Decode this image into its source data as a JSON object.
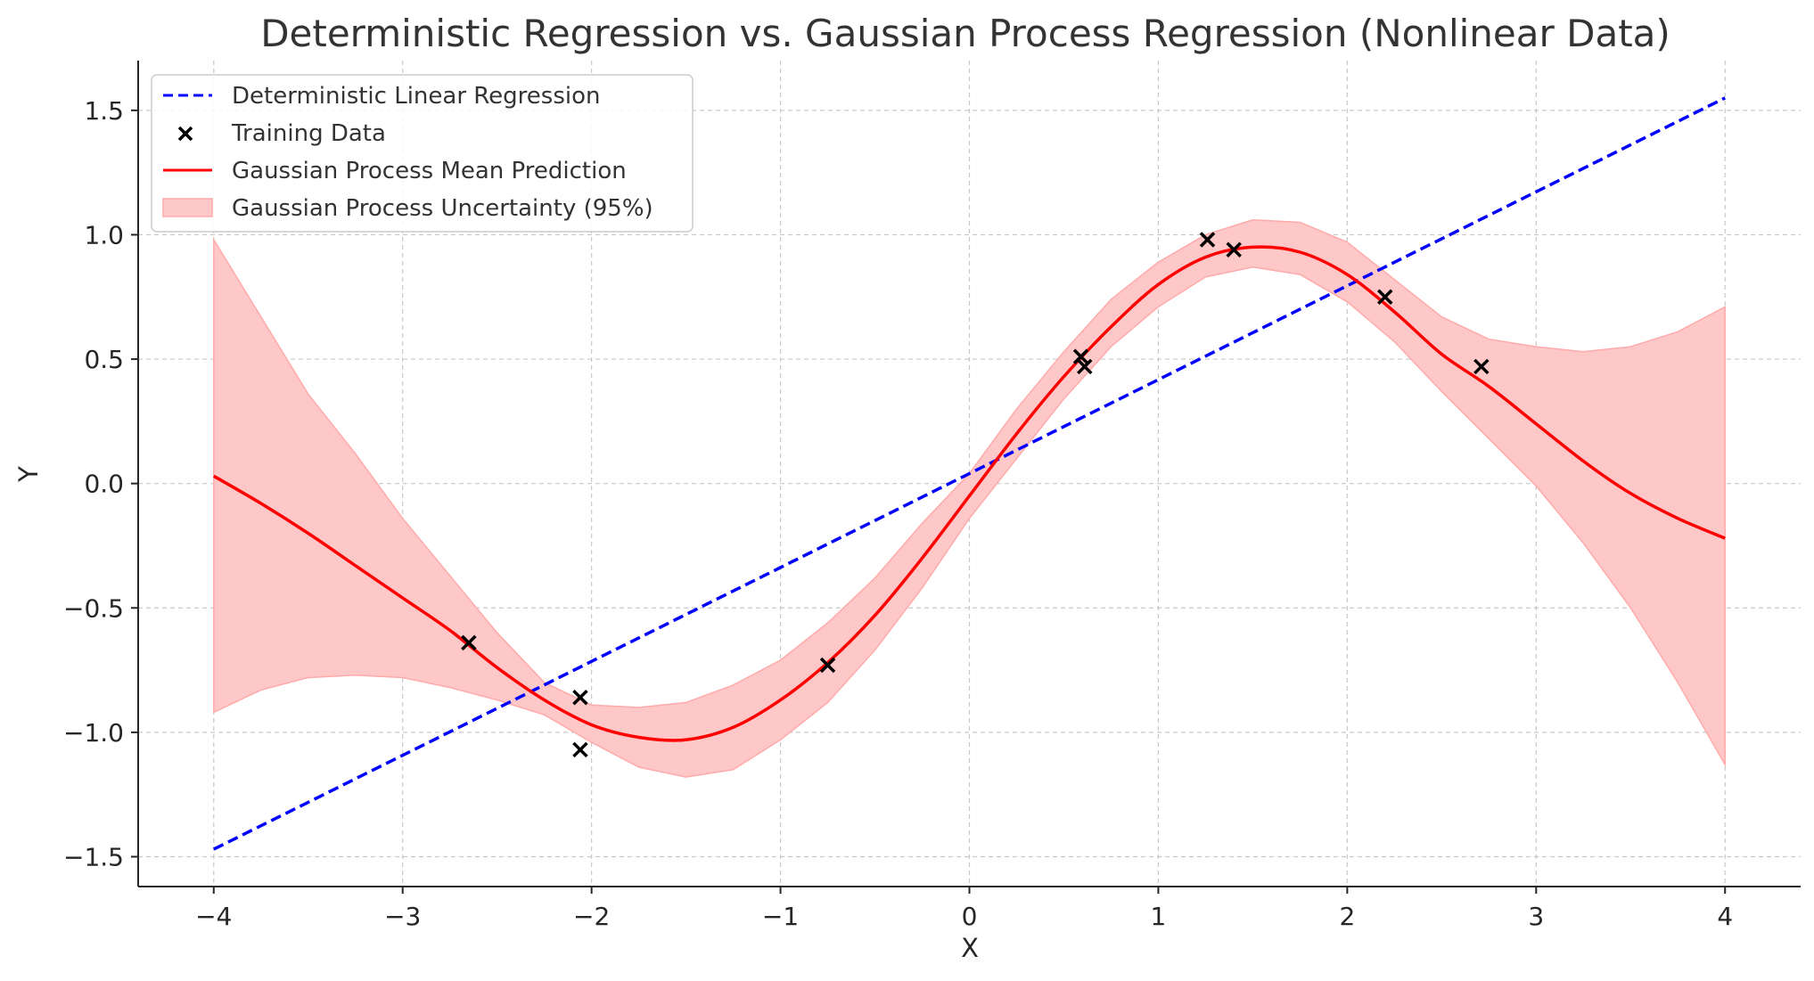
{
  "chart_data": {
    "type": "line",
    "title": "Deterministic Regression vs. Gaussian Process Regression (Nonlinear Data)",
    "xlabel": "X",
    "ylabel": "Y",
    "xlim": [
      -4.4,
      4.4
    ],
    "ylim": [
      -1.62,
      1.7
    ],
    "x_ticks": [
      -4,
      -3,
      -2,
      -1,
      0,
      1,
      2,
      3,
      4
    ],
    "x_tick_labels": [
      "−4",
      "−3",
      "−2",
      "−1",
      "0",
      "1",
      "2",
      "3",
      "4"
    ],
    "y_ticks": [
      -1.5,
      -1.0,
      -0.5,
      0.0,
      0.5,
      1.0,
      1.5
    ],
    "y_tick_labels": [
      "−1.5",
      "−1.0",
      "−0.5",
      "0.0",
      "0.5",
      "1.0",
      "1.5"
    ],
    "grid": true,
    "legend_position": "top-left",
    "colors": {
      "linear": "#0000ff",
      "gp_mean": "#ff0000",
      "uncertainty": "#ffc8c8",
      "uncertainty_edge": "#ffaaaa",
      "training": "#000000",
      "grid": "#c8c8c8",
      "axis": "#262626"
    },
    "series": [
      {
        "name": "Deterministic Linear Regression",
        "kind": "dashed-line",
        "x": [
          -4,
          4
        ],
        "y": [
          -1.47,
          1.55
        ]
      },
      {
        "name": "Training Data",
        "kind": "scatter-x",
        "x": [
          -2.65,
          -2.06,
          -2.06,
          -0.75,
          0.59,
          0.61,
          1.26,
          1.4,
          2.2,
          2.71
        ],
        "y": [
          -0.64,
          -0.86,
          -1.07,
          -0.73,
          0.51,
          0.47,
          0.98,
          0.94,
          0.75,
          0.47
        ]
      },
      {
        "name": "Gaussian Process Mean Prediction",
        "kind": "line",
        "x": [
          -4.0,
          -3.75,
          -3.5,
          -3.25,
          -3.0,
          -2.75,
          -2.5,
          -2.25,
          -2.0,
          -1.75,
          -1.5,
          -1.25,
          -1.0,
          -0.75,
          -0.5,
          -0.25,
          0.0,
          0.25,
          0.5,
          0.75,
          1.0,
          1.25,
          1.5,
          1.75,
          2.0,
          2.25,
          2.5,
          2.75,
          3.0,
          3.25,
          3.5,
          3.75,
          4.0
        ],
        "y": [
          0.03,
          -0.08,
          -0.2,
          -0.33,
          -0.46,
          -0.59,
          -0.74,
          -0.87,
          -0.97,
          -1.02,
          -1.03,
          -0.98,
          -0.87,
          -0.72,
          -0.53,
          -0.3,
          -0.05,
          0.2,
          0.43,
          0.63,
          0.8,
          0.91,
          0.95,
          0.93,
          0.84,
          0.69,
          0.52,
          0.39,
          0.24,
          0.09,
          -0.04,
          -0.14,
          -0.22
        ]
      },
      {
        "name": "Gaussian Process Uncertainty (95%)",
        "kind": "band",
        "x": [
          -4.0,
          -3.75,
          -3.5,
          -3.25,
          -3.0,
          -2.75,
          -2.5,
          -2.25,
          -2.0,
          -1.75,
          -1.5,
          -1.25,
          -1.0,
          -0.75,
          -0.5,
          -0.25,
          0.0,
          0.25,
          0.5,
          0.75,
          1.0,
          1.25,
          1.5,
          1.75,
          2.0,
          2.25,
          2.5,
          2.75,
          3.0,
          3.25,
          3.5,
          3.75,
          4.0
        ],
        "lower": [
          -0.92,
          -0.83,
          -0.78,
          -0.77,
          -0.78,
          -0.82,
          -0.87,
          -0.93,
          -1.04,
          -1.14,
          -1.18,
          -1.15,
          -1.03,
          -0.88,
          -0.67,
          -0.42,
          -0.14,
          0.1,
          0.34,
          0.55,
          0.71,
          0.83,
          0.87,
          0.84,
          0.73,
          0.57,
          0.37,
          0.18,
          -0.01,
          -0.24,
          -0.5,
          -0.8,
          -1.13
        ],
        "upper": [
          0.98,
          0.67,
          0.36,
          0.12,
          -0.14,
          -0.37,
          -0.6,
          -0.8,
          -0.89,
          -0.9,
          -0.88,
          -0.81,
          -0.71,
          -0.56,
          -0.38,
          -0.16,
          0.04,
          0.3,
          0.53,
          0.74,
          0.89,
          1.0,
          1.06,
          1.05,
          0.97,
          0.82,
          0.67,
          0.58,
          0.55,
          0.53,
          0.55,
          0.61,
          0.71
        ]
      }
    ]
  }
}
